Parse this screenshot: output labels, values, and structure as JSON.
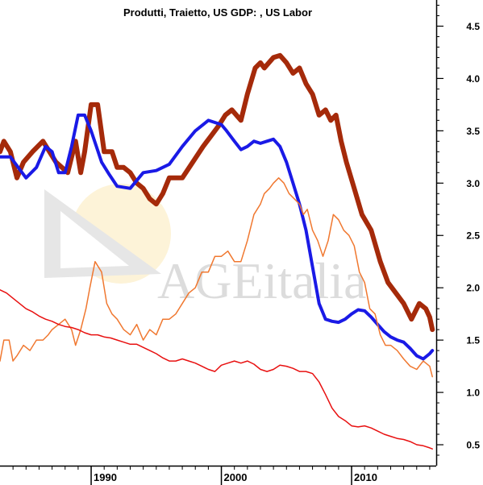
{
  "chart_data": {
    "type": "line",
    "title": "Produtti, Traietto, US GDP: , US Labor",
    "watermark": "AGEitalia",
    "xlim": [
      1983.0,
      2016.5
    ],
    "ylim": [
      0.3,
      4.75
    ],
    "y_ticks": [
      0.5,
      1.0,
      1.5,
      2.0,
      2.5,
      3.0,
      3.5,
      4.0,
      4.5
    ],
    "y_tick_labels": [
      "0.5",
      "1.0",
      "1.5",
      "2.0",
      "2.5",
      "3.0",
      "3.5",
      "4.0",
      "4.5"
    ],
    "y_axis_position": "right",
    "x_ticks": [
      1990,
      2000,
      2010
    ],
    "x_tick_labels": [
      "1990",
      "2000",
      "2010"
    ],
    "grid": false,
    "series": [
      {
        "color": "#a52a0a",
        "width": 6,
        "x": [
          1983.0,
          1983.3,
          1983.8,
          1984.3,
          1984.8,
          1985.5,
          1986.3,
          1987.3,
          1988.2,
          1988.8,
          1989.2,
          1989.5,
          1990.0,
          1990.5,
          1991.0,
          1991.6,
          1992.0,
          1992.5,
          1993.0,
          1993.5,
          1994.0,
          1994.5,
          1995.0,
          1995.5,
          1996.0,
          1997.0,
          1997.8,
          1998.6,
          1999.2,
          1999.8,
          2000.3,
          2000.8,
          2001.5,
          2002.0,
          2002.6,
          2003.0,
          2003.3,
          2004.0,
          2004.5,
          2005.0,
          2005.5,
          2006.0,
          2006.5,
          2007.0,
          2007.5,
          2008.0,
          2008.4,
          2008.8,
          2009.2,
          2009.6,
          2010.2,
          2010.8,
          2011.5,
          2012.2,
          2012.8,
          2013.4,
          2014.0,
          2014.6,
          2015.2,
          2015.7,
          2016.0,
          2016.2
        ],
        "y": [
          3.3,
          3.4,
          3.3,
          3.05,
          3.2,
          3.3,
          3.4,
          3.2,
          3.1,
          3.4,
          3.1,
          3.3,
          3.75,
          3.75,
          3.3,
          3.3,
          3.15,
          3.15,
          3.1,
          3.0,
          2.95,
          2.85,
          2.8,
          2.9,
          3.05,
          3.05,
          3.2,
          3.35,
          3.45,
          3.55,
          3.65,
          3.7,
          3.6,
          3.85,
          4.1,
          4.15,
          4.1,
          4.2,
          4.22,
          4.15,
          4.05,
          4.1,
          3.95,
          3.85,
          3.65,
          3.7,
          3.6,
          3.65,
          3.4,
          3.2,
          2.95,
          2.7,
          2.55,
          2.25,
          2.05,
          1.95,
          1.85,
          1.7,
          1.85,
          1.8,
          1.72,
          1.6
        ]
      },
      {
        "color": "#1a1ae6",
        "width": 4,
        "x": [
          1983.0,
          1983.8,
          1984.4,
          1985.0,
          1985.8,
          1986.5,
          1987.0,
          1987.5,
          1988.0,
          1988.5,
          1989.0,
          1989.5,
          1990.0,
          1990.4,
          1990.8,
          1991.4,
          1992.0,
          1993.0,
          1994.0,
          1995.0,
          1996.0,
          1997.0,
          1998.0,
          1999.0,
          2000.0,
          2000.4,
          2001.0,
          2001.5,
          2002.0,
          2002.5,
          2003.0,
          2003.5,
          2004.0,
          2004.5,
          2005.0,
          2005.5,
          2006.0,
          2006.5,
          2007.0,
          2007.5,
          2008.0,
          2008.5,
          2009.0,
          2009.5,
          2010.0,
          2010.5,
          2011.0,
          2011.5,
          2012.0,
          2012.5,
          2013.0,
          2013.5,
          2014.0,
          2014.5,
          2015.0,
          2015.5,
          2016.0,
          2016.2
        ],
        "y": [
          3.25,
          3.25,
          3.15,
          3.05,
          3.15,
          3.35,
          3.3,
          3.1,
          3.1,
          3.35,
          3.65,
          3.65,
          3.5,
          3.35,
          3.2,
          3.08,
          2.97,
          2.95,
          3.1,
          3.12,
          3.18,
          3.35,
          3.5,
          3.6,
          3.56,
          3.5,
          3.4,
          3.32,
          3.35,
          3.4,
          3.38,
          3.4,
          3.42,
          3.35,
          3.2,
          3.0,
          2.8,
          2.55,
          2.2,
          1.85,
          1.7,
          1.68,
          1.67,
          1.7,
          1.75,
          1.79,
          1.78,
          1.72,
          1.65,
          1.58,
          1.53,
          1.5,
          1.48,
          1.42,
          1.35,
          1.32,
          1.37,
          1.4
        ]
      },
      {
        "color": "#f07830",
        "width": 1.5,
        "x": [
          1983.0,
          1983.3,
          1983.7,
          1984.0,
          1984.3,
          1984.8,
          1985.3,
          1985.8,
          1986.3,
          1986.7,
          1987.0,
          1987.5,
          1988.0,
          1988.5,
          1988.8,
          1989.2,
          1989.6,
          1989.9,
          1990.3,
          1990.8,
          1991.2,
          1991.6,
          1992.0,
          1992.5,
          1993.0,
          1993.5,
          1994.0,
          1994.5,
          1995.0,
          1995.5,
          1996.0,
          1996.5,
          1997.0,
          1997.5,
          1998.0,
          1998.5,
          1999.0,
          1999.5,
          2000.0,
          2000.5,
          2001.0,
          2001.5,
          2002.0,
          2002.5,
          2003.0,
          2003.3,
          2003.7,
          2004.0,
          2004.4,
          2004.8,
          2005.2,
          2005.6,
          2006.0,
          2006.3,
          2006.6,
          2007.0,
          2007.4,
          2007.8,
          2008.2,
          2008.6,
          2009.0,
          2009.4,
          2009.8,
          2010.2,
          2010.6,
          2011.0,
          2011.4,
          2011.8,
          2012.2,
          2012.6,
          2013.0,
          2013.5,
          2014.0,
          2014.5,
          2015.0,
          2015.5,
          2016.0,
          2016.2
        ],
        "y": [
          1.3,
          1.5,
          1.5,
          1.3,
          1.35,
          1.45,
          1.4,
          1.5,
          1.5,
          1.55,
          1.6,
          1.65,
          1.7,
          1.6,
          1.45,
          1.6,
          1.8,
          2.0,
          2.25,
          2.15,
          1.85,
          1.75,
          1.7,
          1.6,
          1.55,
          1.65,
          1.5,
          1.6,
          1.55,
          1.7,
          1.7,
          1.75,
          1.85,
          1.95,
          2.0,
          2.15,
          2.15,
          2.3,
          2.3,
          2.35,
          2.25,
          2.25,
          2.45,
          2.7,
          2.8,
          2.9,
          2.95,
          3.0,
          3.05,
          3.0,
          2.9,
          2.85,
          2.8,
          2.7,
          2.75,
          2.55,
          2.45,
          2.3,
          2.45,
          2.7,
          2.65,
          2.55,
          2.5,
          2.4,
          2.15,
          2.05,
          1.8,
          1.75,
          1.55,
          1.45,
          1.45,
          1.4,
          1.32,
          1.25,
          1.22,
          1.3,
          1.25,
          1.15
        ]
      },
      {
        "color": "#e81010",
        "width": 1.5,
        "x": [
          1983.0,
          1983.5,
          1984.0,
          1984.5,
          1985.0,
          1985.5,
          1986.0,
          1986.5,
          1987.0,
          1987.5,
          1988.0,
          1988.5,
          1989.0,
          1989.5,
          1990.0,
          1990.5,
          1991.0,
          1991.5,
          1992.0,
          1992.5,
          1993.0,
          1993.5,
          1994.0,
          1994.5,
          1995.0,
          1995.5,
          1996.0,
          1996.5,
          1997.0,
          1997.5,
          1998.0,
          1998.5,
          1999.0,
          1999.5,
          2000.0,
          2000.5,
          2001.0,
          2001.5,
          2002.0,
          2002.5,
          2003.0,
          2003.5,
          2004.0,
          2004.5,
          2005.0,
          2005.5,
          2006.0,
          2006.5,
          2007.0,
          2007.5,
          2008.0,
          2008.5,
          2009.0,
          2009.5,
          2010.0,
          2010.5,
          2011.0,
          2011.5,
          2012.0,
          2012.5,
          2013.0,
          2013.5,
          2014.0,
          2014.5,
          2015.0,
          2015.5,
          2016.0,
          2016.2
        ],
        "y": [
          1.98,
          1.95,
          1.9,
          1.85,
          1.8,
          1.77,
          1.73,
          1.7,
          1.68,
          1.65,
          1.63,
          1.62,
          1.6,
          1.57,
          1.55,
          1.55,
          1.53,
          1.52,
          1.5,
          1.48,
          1.46,
          1.46,
          1.43,
          1.4,
          1.37,
          1.33,
          1.3,
          1.3,
          1.32,
          1.3,
          1.28,
          1.25,
          1.22,
          1.2,
          1.26,
          1.28,
          1.3,
          1.28,
          1.3,
          1.27,
          1.22,
          1.2,
          1.22,
          1.26,
          1.25,
          1.23,
          1.2,
          1.2,
          1.18,
          1.1,
          0.98,
          0.85,
          0.77,
          0.73,
          0.68,
          0.67,
          0.68,
          0.66,
          0.63,
          0.6,
          0.58,
          0.56,
          0.55,
          0.53,
          0.5,
          0.49,
          0.47,
          0.46
        ]
      }
    ]
  }
}
